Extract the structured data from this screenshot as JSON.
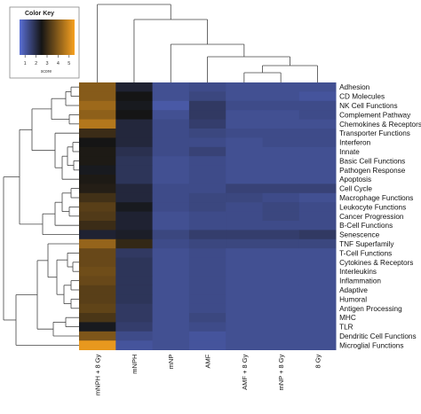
{
  "chart_data": {
    "type": "heatmap",
    "title": "",
    "color_key": {
      "title": "Color Key",
      "xlabel": "score",
      "ticks": [
        1,
        2,
        3,
        4,
        5
      ],
      "range": [
        0.5,
        5.5
      ],
      "colors": {
        "low": "#5a6fd6",
        "mid": "#151515",
        "high": "#f7a11f"
      }
    },
    "columns": [
      "mNPH + 8 Gy",
      "mNPH",
      "mNP",
      "AMF",
      "AMF + 8 Gy",
      "mNP + 8 Gy",
      "8 Gy"
    ],
    "rows": [
      "Adhesion",
      "CD Molecules",
      "NK Cell Functions",
      "Complement Pathway",
      "Chemokines & Receptors",
      "Transporter Functions",
      "Interferon",
      "Innate",
      "Basic Cell Functions",
      "Pathogen Response",
      "Apoptosis",
      "Cell Cycle",
      "Macrophage Functions",
      "Leukocyte Functions",
      "Cancer Progression",
      "B-Cell Functions",
      "Senescence",
      "TNF Superfamily",
      "T-Cell Functions",
      "Cytokines & Receptors",
      "Interleukins",
      "Inflammation",
      "Adaptive",
      "Humoral",
      "Antigen Processing",
      "MHC",
      "TLR",
      "Dendritic Cell Functions",
      "Microglial Functions"
    ],
    "values": [
      [
        4.0,
        2.2,
        1.2,
        1.3,
        1.2,
        1.2,
        1.2
      ],
      [
        4.0,
        2.5,
        1.2,
        1.4,
        1.2,
        1.2,
        1.1
      ],
      [
        4.3,
        2.4,
        1.0,
        1.7,
        1.3,
        1.3,
        1.3
      ],
      [
        4.1,
        2.5,
        1.2,
        1.7,
        1.2,
        1.2,
        1.3
      ],
      [
        4.6,
        2.1,
        1.3,
        1.6,
        1.2,
        1.2,
        1.2
      ],
      [
        3.0,
        2.1,
        1.3,
        1.4,
        1.3,
        1.3,
        1.3
      ],
      [
        2.5,
        2.1,
        1.3,
        1.3,
        1.2,
        1.3,
        1.3
      ],
      [
        2.6,
        1.9,
        1.3,
        1.5,
        1.2,
        1.2,
        1.2
      ],
      [
        2.6,
        1.8,
        1.2,
        1.3,
        1.2,
        1.2,
        1.2
      ],
      [
        2.4,
        1.8,
        1.2,
        1.3,
        1.2,
        1.2,
        1.2
      ],
      [
        2.6,
        1.8,
        1.2,
        1.3,
        1.2,
        1.2,
        1.2
      ],
      [
        2.7,
        2.1,
        1.3,
        1.3,
        1.5,
        1.5,
        1.5
      ],
      [
        3.1,
        2.1,
        1.3,
        1.4,
        1.4,
        1.3,
        1.2
      ],
      [
        3.4,
        2.4,
        1.3,
        1.4,
        1.3,
        1.4,
        1.3
      ],
      [
        3.3,
        2.2,
        1.2,
        1.3,
        1.3,
        1.4,
        1.3
      ],
      [
        3.0,
        2.2,
        1.2,
        1.3,
        1.3,
        1.3,
        1.3
      ],
      [
        2.2,
        2.3,
        1.4,
        1.6,
        1.6,
        1.6,
        1.7
      ],
      [
        4.2,
        2.9,
        1.3,
        1.4,
        1.4,
        1.4,
        1.4
      ],
      [
        3.6,
        1.7,
        1.2,
        1.3,
        1.2,
        1.2,
        1.2
      ],
      [
        3.6,
        1.8,
        1.2,
        1.3,
        1.2,
        1.2,
        1.2
      ],
      [
        3.7,
        1.8,
        1.2,
        1.3,
        1.2,
        1.2,
        1.2
      ],
      [
        3.6,
        1.8,
        1.2,
        1.3,
        1.2,
        1.2,
        1.2
      ],
      [
        3.4,
        1.8,
        1.2,
        1.3,
        1.2,
        1.2,
        1.2
      ],
      [
        3.4,
        1.8,
        1.2,
        1.3,
        1.2,
        1.2,
        1.2
      ],
      [
        3.5,
        1.7,
        1.2,
        1.3,
        1.2,
        1.2,
        1.2
      ],
      [
        3.2,
        1.7,
        1.2,
        1.4,
        1.2,
        1.2,
        1.2
      ],
      [
        2.4,
        1.6,
        1.2,
        1.3,
        1.2,
        1.2,
        1.2
      ],
      [
        3.9,
        1.3,
        1.2,
        1.1,
        1.2,
        1.2,
        1.2
      ],
      [
        5.3,
        1.1,
        1.2,
        1.1,
        1.2,
        1.2,
        1.2
      ]
    ],
    "legend_placement": "top-left",
    "grid": false
  }
}
